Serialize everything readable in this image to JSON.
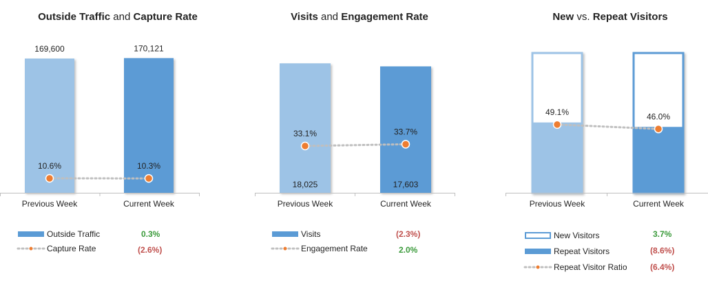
{
  "colors": {
    "light_blue": "#9dc3e6",
    "dark_blue": "#5b9bd5",
    "orange": "#ed7d31",
    "dotted": "#bfbfbf",
    "positive": "#3a9a3a",
    "negative": "#c0504d"
  },
  "chart_data": [
    {
      "type": "bar",
      "title": {
        "part1": "Outside Traffic",
        "joiner": " and ",
        "part2": "Capture Rate"
      },
      "categories": [
        "Previous Week",
        "Current Week"
      ],
      "ylim": [
        0,
        170121
      ],
      "series": [
        {
          "name": "Outside Traffic",
          "values": [
            169600,
            170121
          ],
          "labels": [
            "169,600",
            "170,121"
          ],
          "change": "0.3%",
          "change_sign": "pos"
        },
        {
          "name": "Capture Rate",
          "kind": "line",
          "values": [
            10.6,
            10.3
          ],
          "labels": [
            "10.6%",
            "10.3%"
          ],
          "ylim": [
            0,
            50
          ],
          "change": "(2.6%)",
          "change_sign": "neg"
        }
      ]
    },
    {
      "type": "bar",
      "title": {
        "part1": "Visits",
        "joiner": " and ",
        "part2": "Engagement Rate"
      },
      "categories": [
        "Previous Week",
        "Current Week"
      ],
      "ylim": [
        0,
        18025
      ],
      "series": [
        {
          "name": "Visits",
          "values": [
            18025,
            17603
          ],
          "labels": [
            "18,025",
            "17,603"
          ],
          "change": "(2.3%)",
          "change_sign": "neg"
        },
        {
          "name": "Engagement Rate",
          "kind": "line",
          "values": [
            33.1,
            33.7
          ],
          "labels": [
            "33.1%",
            "33.7%"
          ],
          "ylim": [
            0,
            50
          ],
          "change": "2.0%",
          "change_sign": "pos"
        }
      ]
    },
    {
      "type": "bar",
      "stacked": true,
      "title": {
        "part1": "New",
        "joiner": " vs. ",
        "part2": "Repeat Visitors"
      },
      "categories": [
        "Previous Week",
        "Current Week"
      ],
      "series": [
        {
          "name": "New Visitors",
          "values": [
            50.9,
            54.0
          ],
          "change": "3.7%",
          "change_sign": "pos"
        },
        {
          "name": "Repeat Visitors",
          "values": [
            49.1,
            46.0
          ],
          "change": "(8.6%)",
          "change_sign": "neg"
        },
        {
          "name": "Repeat Visitor Ratio",
          "kind": "line",
          "values": [
            49.1,
            46.0
          ],
          "labels": [
            "49.1%",
            "46.0%"
          ],
          "change": "(6.4%)",
          "change_sign": "neg"
        }
      ]
    }
  ]
}
